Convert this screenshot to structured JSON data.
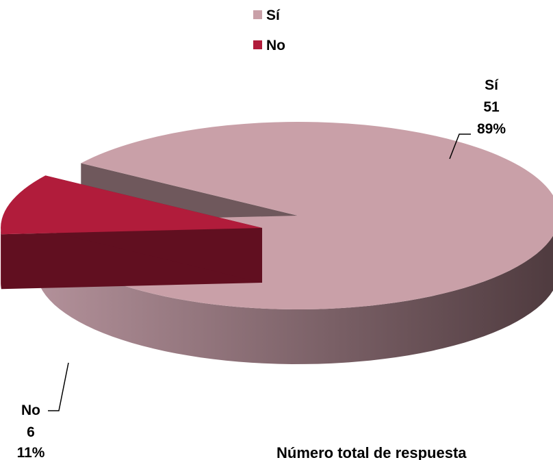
{
  "chart_data": {
    "type": "pie",
    "style": "3d-exploded",
    "title": "",
    "series": [
      {
        "name": "Sí",
        "value": 51,
        "percent": "89%",
        "color": "#c9a0a8"
      },
      {
        "name": "No",
        "value": 6,
        "percent": "11%",
        "color": "#b11c3b"
      }
    ],
    "legend": {
      "position": "top-center"
    },
    "footer_text": "Número total de respuesta"
  }
}
